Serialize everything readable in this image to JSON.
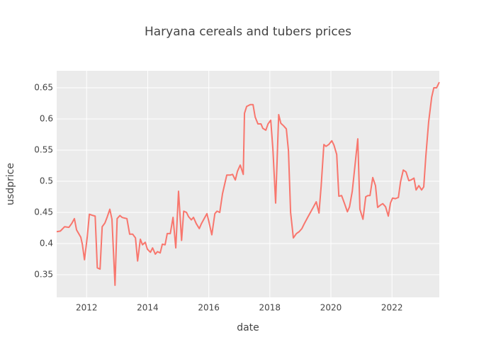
{
  "chart_data": {
    "type": "line",
    "title": "Haryana cereals and tubers prices",
    "x_label": "date",
    "y_label": "usdprice",
    "x": [
      2011.02,
      2011.14,
      2011.28,
      2011.42,
      2011.51,
      2011.6,
      2011.67,
      2011.81,
      2011.86,
      2011.93,
      2012.02,
      2012.09,
      2012.21,
      2012.28,
      2012.35,
      2012.44,
      2012.51,
      2012.6,
      2012.67,
      2012.76,
      2012.83,
      2012.93,
      2013.0,
      2013.09,
      2013.16,
      2013.23,
      2013.32,
      2013.41,
      2013.51,
      2013.6,
      2013.67,
      2013.76,
      2013.83,
      2013.92,
      2013.99,
      2014.09,
      2014.16,
      2014.25,
      2014.32,
      2014.41,
      2014.48,
      2014.57,
      2014.64,
      2014.74,
      2014.83,
      2014.92,
      2015.01,
      2015.11,
      2015.18,
      2015.27,
      2015.34,
      2015.43,
      2015.5,
      2015.59,
      2015.69,
      2015.76,
      2015.85,
      2015.94,
      2016.01,
      2016.1,
      2016.2,
      2016.27,
      2016.36,
      2016.45,
      2016.52,
      2016.59,
      2016.71,
      2016.78,
      2016.87,
      2016.94,
      2017.03,
      2017.13,
      2017.17,
      2017.24,
      2017.36,
      2017.45,
      2017.52,
      2017.61,
      2017.71,
      2017.77,
      2017.87,
      2017.94,
      2018.03,
      2018.1,
      2018.19,
      2018.29,
      2018.36,
      2018.45,
      2018.54,
      2018.61,
      2018.68,
      2018.77,
      2018.87,
      2018.96,
      2019.05,
      2019.12,
      2019.24,
      2019.33,
      2019.42,
      2019.52,
      2019.61,
      2019.68,
      2019.77,
      2019.84,
      2019.93,
      2020.03,
      2020.1,
      2020.19,
      2020.26,
      2020.35,
      2020.44,
      2020.54,
      2020.61,
      2020.7,
      2020.79,
      2020.88,
      2020.95,
      2021.05,
      2021.14,
      2021.21,
      2021.28,
      2021.37,
      2021.46,
      2021.53,
      2021.63,
      2021.7,
      2021.79,
      2021.88,
      2021.95,
      2022.02,
      2022.11,
      2022.21,
      2022.28,
      2022.37,
      2022.46,
      2022.55,
      2022.62,
      2022.72,
      2022.79,
      2022.88,
      2022.97,
      2023.04,
      2023.11,
      2023.2,
      2023.3,
      2023.37,
      2023.46,
      2023.55
    ],
    "series": [
      {
        "name": "usdprice",
        "color": "#F8766D",
        "values": [
          0.419,
          0.42,
          0.427,
          0.426,
          0.432,
          0.44,
          0.422,
          0.41,
          0.399,
          0.374,
          0.41,
          0.447,
          0.445,
          0.444,
          0.361,
          0.359,
          0.427,
          0.433,
          0.442,
          0.455,
          0.439,
          0.333,
          0.44,
          0.445,
          0.442,
          0.441,
          0.44,
          0.415,
          0.415,
          0.409,
          0.372,
          0.407,
          0.398,
          0.402,
          0.391,
          0.386,
          0.393,
          0.383,
          0.387,
          0.385,
          0.399,
          0.398,
          0.416,
          0.416,
          0.442,
          0.393,
          0.484,
          0.405,
          0.452,
          0.45,
          0.443,
          0.438,
          0.442,
          0.432,
          0.424,
          0.432,
          0.44,
          0.448,
          0.434,
          0.414,
          0.448,
          0.452,
          0.45,
          0.48,
          0.495,
          0.51,
          0.51,
          0.511,
          0.502,
          0.516,
          0.526,
          0.511,
          0.609,
          0.62,
          0.623,
          0.623,
          0.603,
          0.592,
          0.592,
          0.585,
          0.582,
          0.592,
          0.598,
          0.552,
          0.465,
          0.607,
          0.593,
          0.589,
          0.584,
          0.549,
          0.45,
          0.409,
          0.416,
          0.419,
          0.424,
          0.431,
          0.442,
          0.45,
          0.458,
          0.467,
          0.449,
          0.492,
          0.559,
          0.556,
          0.559,
          0.565,
          0.558,
          0.543,
          0.476,
          0.477,
          0.465,
          0.451,
          0.459,
          0.484,
          0.526,
          0.568,
          0.455,
          0.439,
          0.475,
          0.477,
          0.477,
          0.506,
          0.493,
          0.458,
          0.462,
          0.464,
          0.459,
          0.444,
          0.465,
          0.473,
          0.472,
          0.474,
          0.499,
          0.518,
          0.515,
          0.501,
          0.502,
          0.505,
          0.486,
          0.493,
          0.486,
          0.491,
          0.541,
          0.595,
          0.635,
          0.65,
          0.65,
          0.659
        ]
      }
    ],
    "xlim": [
      2011.02,
      2023.55
    ],
    "xticks": [
      2012,
      2014,
      2016,
      2018,
      2020,
      2022
    ],
    "ylim": [
      0.3136,
      0.6773
    ],
    "yticks": [
      0.35,
      0.4,
      0.45,
      0.5,
      0.55,
      0.6,
      0.65
    ],
    "grid": true
  }
}
